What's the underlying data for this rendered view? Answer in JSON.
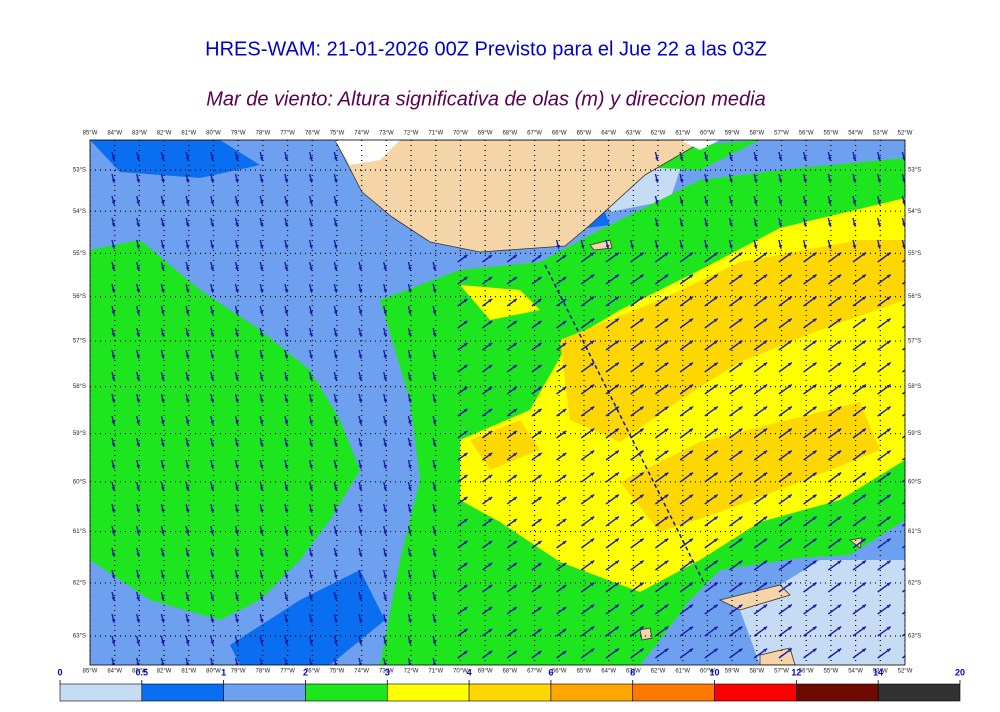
{
  "header": {
    "title": "HRES-WAM: 21-01-2026 00Z Previsto para el Jue 22 a las 03Z",
    "subtitle": "Mar de viento: Altura significativa de olas (m) y direccion media"
  },
  "map": {
    "lon_labels": [
      {
        "value": 85,
        "label": "85°W"
      },
      {
        "value": 84,
        "label": "84°W"
      },
      {
        "value": 83,
        "label": "83°W"
      },
      {
        "value": 82,
        "label": "82°W"
      },
      {
        "value": 81,
        "label": "81°W"
      },
      {
        "value": 80,
        "label": "80°W"
      },
      {
        "value": 79,
        "label": "79°W"
      },
      {
        "value": 78,
        "label": "78°W"
      },
      {
        "value": 77,
        "label": "77°W"
      },
      {
        "value": 76,
        "label": "76°W"
      },
      {
        "value": 75,
        "label": "75°W"
      },
      {
        "value": 74,
        "label": "74°W"
      },
      {
        "value": 73,
        "label": "73°W"
      },
      {
        "value": 72,
        "label": "72°W"
      },
      {
        "value": 71,
        "label": "71°W"
      },
      {
        "value": 70,
        "label": "70°W"
      },
      {
        "value": 69,
        "label": "69°W"
      },
      {
        "value": 68,
        "label": "68°W"
      },
      {
        "value": 67,
        "label": "67°W"
      },
      {
        "value": 66,
        "label": "66°W"
      },
      {
        "value": 65,
        "label": "65°W"
      },
      {
        "value": 64,
        "label": "64°W"
      },
      {
        "value": 63,
        "label": "63°W"
      },
      {
        "value": 62,
        "label": "62°W"
      },
      {
        "value": 61,
        "label": "61°W"
      },
      {
        "value": 60,
        "label": "60°W"
      },
      {
        "value": 59,
        "label": "59°W"
      },
      {
        "value": 58,
        "label": "58°W"
      },
      {
        "value": 57,
        "label": "57°W"
      },
      {
        "value": 56,
        "label": "56°W"
      },
      {
        "value": 55,
        "label": "55°W"
      },
      {
        "value": 54,
        "label": "54°W"
      },
      {
        "value": 53,
        "label": "53°W"
      },
      {
        "value": 52,
        "label": "52°W"
      }
    ],
    "lat_labels": [
      {
        "value": 53,
        "label": "53°S"
      },
      {
        "value": 54,
        "label": "54°S"
      },
      {
        "value": 55,
        "label": "55°S"
      },
      {
        "value": 56,
        "label": "56°S"
      },
      {
        "value": 57,
        "label": "57°S"
      },
      {
        "value": 58,
        "label": "58°S"
      },
      {
        "value": 59,
        "label": "59°S"
      },
      {
        "value": 60,
        "label": "60°S"
      },
      {
        "value": 61,
        "label": "61°S"
      },
      {
        "value": 62,
        "label": "62°S"
      },
      {
        "value": 63,
        "label": "63°S"
      }
    ]
  },
  "colorbar": {
    "ticks": [
      0,
      0.5,
      1,
      2,
      3,
      4,
      6,
      8,
      10,
      12,
      14,
      20
    ],
    "colors": [
      "#c6dcf5",
      "#0a6ef0",
      "#6ea0f0",
      "#1ee61e",
      "#ffff00",
      "#ffd700",
      "#ffa500",
      "#ff7800",
      "#ff0000",
      "#6e0a00",
      "#323232"
    ]
  }
}
